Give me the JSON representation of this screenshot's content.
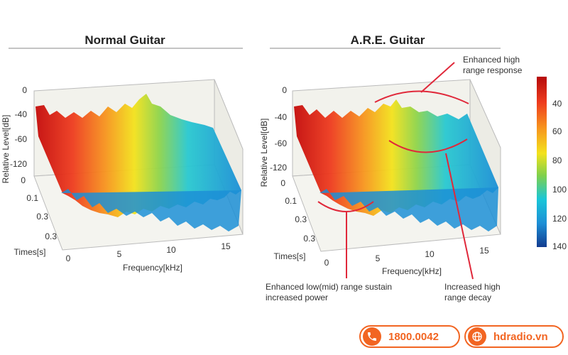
{
  "chart_data": [
    {
      "type": "surface-3d",
      "title": "Normal Guitar",
      "xlabel": "Frequency[kHz]",
      "ylabel": "Times[s]",
      "zlabel": "Relative Level[dB]",
      "x_ticks": [
        "0",
        "5",
        "10",
        "15"
      ],
      "y_ticks": [
        "0",
        "0.1",
        "0.3",
        "0.3"
      ],
      "z_ticks": [
        "0",
        "-40",
        "-60",
        "-120"
      ],
      "xlim": [
        0,
        17
      ],
      "zlim": [
        -120,
        0
      ]
    },
    {
      "type": "surface-3d",
      "title": "A.R.E. Guitar",
      "xlabel": "Frequency[kHz]",
      "ylabel": "Times[s]",
      "zlabel": "Relative Level[dB]",
      "x_ticks": [
        "0",
        "5",
        "10",
        "15"
      ],
      "y_ticks": [
        "0",
        "0.1",
        "0.3",
        "0.3"
      ],
      "z_ticks": [
        "0",
        "-40",
        "-60",
        "-120"
      ],
      "xlim": [
        0,
        17
      ],
      "zlim": [
        -120,
        0
      ],
      "annotations": [
        {
          "lines": [
            "Enhanced high",
            "range response"
          ]
        },
        {
          "lines": [
            "Enhanced low(mid) range sustain",
            "increased power"
          ]
        },
        {
          "lines": [
            "Increased high",
            "range decay"
          ]
        }
      ]
    }
  ],
  "colorbar": {
    "ticks": [
      "40",
      "60",
      "80",
      "100",
      "120",
      "140"
    ],
    "colors": [
      "#c40a0a",
      "#ee3b1e",
      "#f7941d",
      "#f3e21c",
      "#7fd04b",
      "#19c6d8",
      "#1c8fd6",
      "#123b8f"
    ]
  },
  "footer": {
    "phone": "1800.0042",
    "website": "hdradio.vn",
    "phone_icon": "phone-icon",
    "web_icon": "globe-icon",
    "accent": "#f26522"
  }
}
